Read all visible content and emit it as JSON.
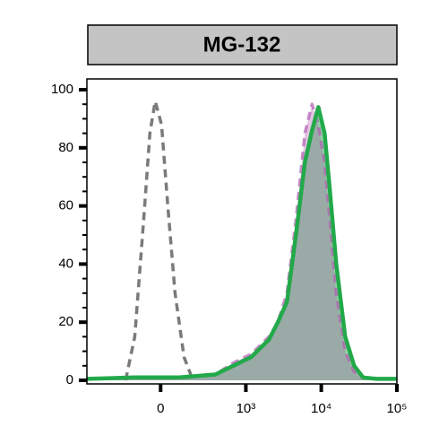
{
  "chart_data": {
    "type": "histogram-overlay",
    "title": "MG-132",
    "xscale": "biexponential",
    "xlim": [
      -700,
      100000
    ],
    "xticks": [
      0,
      {
        "value": 1000,
        "label": "10³"
      },
      {
        "value": 10000,
        "label": "10⁴"
      },
      {
        "value": 100000,
        "label": "10⁵"
      }
    ],
    "ylim": [
      0,
      100
    ],
    "yticks": [
      0,
      20,
      40,
      60,
      80,
      100
    ],
    "series": [
      {
        "color": "#22a94a",
        "style": "solid",
        "fill": true,
        "x": [
          -700,
          -131,
          91,
          383,
          675,
          1176,
          2030,
          2670,
          3510,
          4620,
          6060,
          7540,
          9130,
          11050,
          13020,
          15760,
          20700,
          27200,
          35700,
          53700,
          100000
        ],
        "values": [
          0.5,
          1,
          1,
          2,
          5,
          8,
          14,
          20,
          27,
          50,
          75,
          86,
          94,
          85,
          65,
          40,
          15,
          5,
          1,
          0.5,
          0.5
        ]
      },
      {
        "color": "#b05cb0",
        "style": "dashed",
        "fill": true,
        "x": [
          -700,
          -131,
          91,
          383,
          675,
          1176,
          2030,
          2670,
          3510,
          4620,
          6060,
          7540,
          9130,
          11050,
          13020,
          15760,
          20700,
          27200,
          35700,
          53700,
          100000
        ],
        "values": [
          0.5,
          1,
          1,
          2,
          6,
          9,
          15,
          20,
          30,
          55,
          85,
          95,
          88,
          75,
          55,
          30,
          10,
          3,
          1,
          0.5,
          0.5
        ]
      },
      {
        "color": "#7a7a7a",
        "style": "dashed",
        "fill": false,
        "x": [
          -192,
          -131,
          -81,
          -50,
          -25,
          -10,
          4,
          33,
          68,
          116,
          173
        ],
        "values": [
          0,
          15,
          55,
          85,
          96,
          92,
          88,
          60,
          30,
          8,
          0
        ]
      }
    ]
  }
}
